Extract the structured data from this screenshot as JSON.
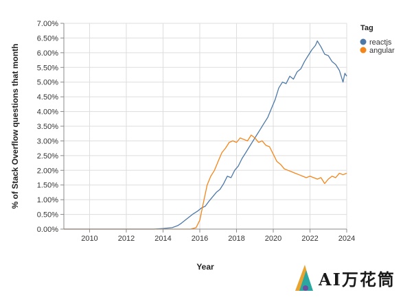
{
  "chart_data": {
    "type": "line",
    "title": "",
    "xlabel": "Year",
    "ylabel": "% of Stack Overflow questions that month",
    "xlim": [
      2008.6,
      2024.0
    ],
    "ylim": [
      0,
      7.0
    ],
    "x_ticks": [
      2010,
      2012,
      2014,
      2016,
      2018,
      2020,
      2022,
      2024
    ],
    "y_ticks": [
      0,
      0.5,
      1,
      1.5,
      2,
      2.5,
      3,
      3.5,
      4,
      4.5,
      5,
      5.5,
      6,
      6.5,
      7
    ],
    "y_tick_labels": [
      "0.00%",
      "0.50%",
      "1.00%",
      "1.50%",
      "2.00%",
      "2.50%",
      "3.00%",
      "3.50%",
      "4.00%",
      "4.50%",
      "5.00%",
      "5.50%",
      "6.00%",
      "6.50%",
      "7.00%"
    ],
    "grid": true,
    "legend": {
      "title": "Tag",
      "position": "top-right"
    },
    "series": [
      {
        "name": "reactjs",
        "color": "#4c78a8",
        "points": [
          [
            2008.6,
            0.0
          ],
          [
            2013.5,
            0.0
          ],
          [
            2014.0,
            0.02
          ],
          [
            2014.5,
            0.05
          ],
          [
            2014.8,
            0.12
          ],
          [
            2015.0,
            0.2
          ],
          [
            2015.3,
            0.35
          ],
          [
            2015.6,
            0.5
          ],
          [
            2015.9,
            0.62
          ],
          [
            2016.1,
            0.72
          ],
          [
            2016.3,
            0.78
          ],
          [
            2016.5,
            0.95
          ],
          [
            2016.7,
            1.1
          ],
          [
            2016.9,
            1.25
          ],
          [
            2017.1,
            1.35
          ],
          [
            2017.3,
            1.55
          ],
          [
            2017.5,
            1.8
          ],
          [
            2017.7,
            1.75
          ],
          [
            2017.9,
            2.0
          ],
          [
            2018.1,
            2.15
          ],
          [
            2018.3,
            2.4
          ],
          [
            2018.5,
            2.6
          ],
          [
            2018.7,
            2.8
          ],
          [
            2018.9,
            3.0
          ],
          [
            2019.1,
            3.2
          ],
          [
            2019.3,
            3.4
          ],
          [
            2019.5,
            3.6
          ],
          [
            2019.7,
            3.8
          ],
          [
            2019.9,
            4.1
          ],
          [
            2020.1,
            4.4
          ],
          [
            2020.3,
            4.8
          ],
          [
            2020.5,
            5.0
          ],
          [
            2020.7,
            4.95
          ],
          [
            2020.9,
            5.2
          ],
          [
            2021.1,
            5.1
          ],
          [
            2021.3,
            5.35
          ],
          [
            2021.5,
            5.45
          ],
          [
            2021.7,
            5.7
          ],
          [
            2021.9,
            5.9
          ],
          [
            2022.1,
            6.1
          ],
          [
            2022.3,
            6.25
          ],
          [
            2022.4,
            6.4
          ],
          [
            2022.6,
            6.2
          ],
          [
            2022.8,
            5.95
          ],
          [
            2023.0,
            5.9
          ],
          [
            2023.2,
            5.7
          ],
          [
            2023.4,
            5.6
          ],
          [
            2023.6,
            5.4
          ],
          [
            2023.8,
            5.0
          ],
          [
            2023.9,
            5.3
          ],
          [
            2024.0,
            5.2
          ]
        ]
      },
      {
        "name": "angular",
        "color": "#f58518",
        "points": [
          [
            2008.6,
            0.0
          ],
          [
            2015.5,
            0.0
          ],
          [
            2015.8,
            0.05
          ],
          [
            2016.0,
            0.3
          ],
          [
            2016.2,
            0.9
          ],
          [
            2016.4,
            1.5
          ],
          [
            2016.6,
            1.8
          ],
          [
            2016.8,
            2.0
          ],
          [
            2017.0,
            2.3
          ],
          [
            2017.2,
            2.6
          ],
          [
            2017.4,
            2.75
          ],
          [
            2017.6,
            2.95
          ],
          [
            2017.8,
            3.0
          ],
          [
            2018.0,
            2.95
          ],
          [
            2018.2,
            3.1
          ],
          [
            2018.4,
            3.05
          ],
          [
            2018.6,
            3.0
          ],
          [
            2018.8,
            3.2
          ],
          [
            2019.0,
            3.1
          ],
          [
            2019.2,
            2.95
          ],
          [
            2019.4,
            3.0
          ],
          [
            2019.6,
            2.85
          ],
          [
            2019.8,
            2.8
          ],
          [
            2020.0,
            2.55
          ],
          [
            2020.2,
            2.3
          ],
          [
            2020.4,
            2.2
          ],
          [
            2020.6,
            2.05
          ],
          [
            2020.8,
            2.0
          ],
          [
            2021.0,
            1.95
          ],
          [
            2021.2,
            1.9
          ],
          [
            2021.4,
            1.85
          ],
          [
            2021.6,
            1.8
          ],
          [
            2021.8,
            1.75
          ],
          [
            2022.0,
            1.8
          ],
          [
            2022.2,
            1.75
          ],
          [
            2022.4,
            1.7
          ],
          [
            2022.6,
            1.75
          ],
          [
            2022.8,
            1.55
          ],
          [
            2023.0,
            1.7
          ],
          [
            2023.2,
            1.8
          ],
          [
            2023.4,
            1.75
          ],
          [
            2023.6,
            1.9
          ],
          [
            2023.8,
            1.85
          ],
          [
            2024.0,
            1.9
          ]
        ]
      }
    ]
  },
  "watermark": {
    "text": "AI万花筒"
  }
}
